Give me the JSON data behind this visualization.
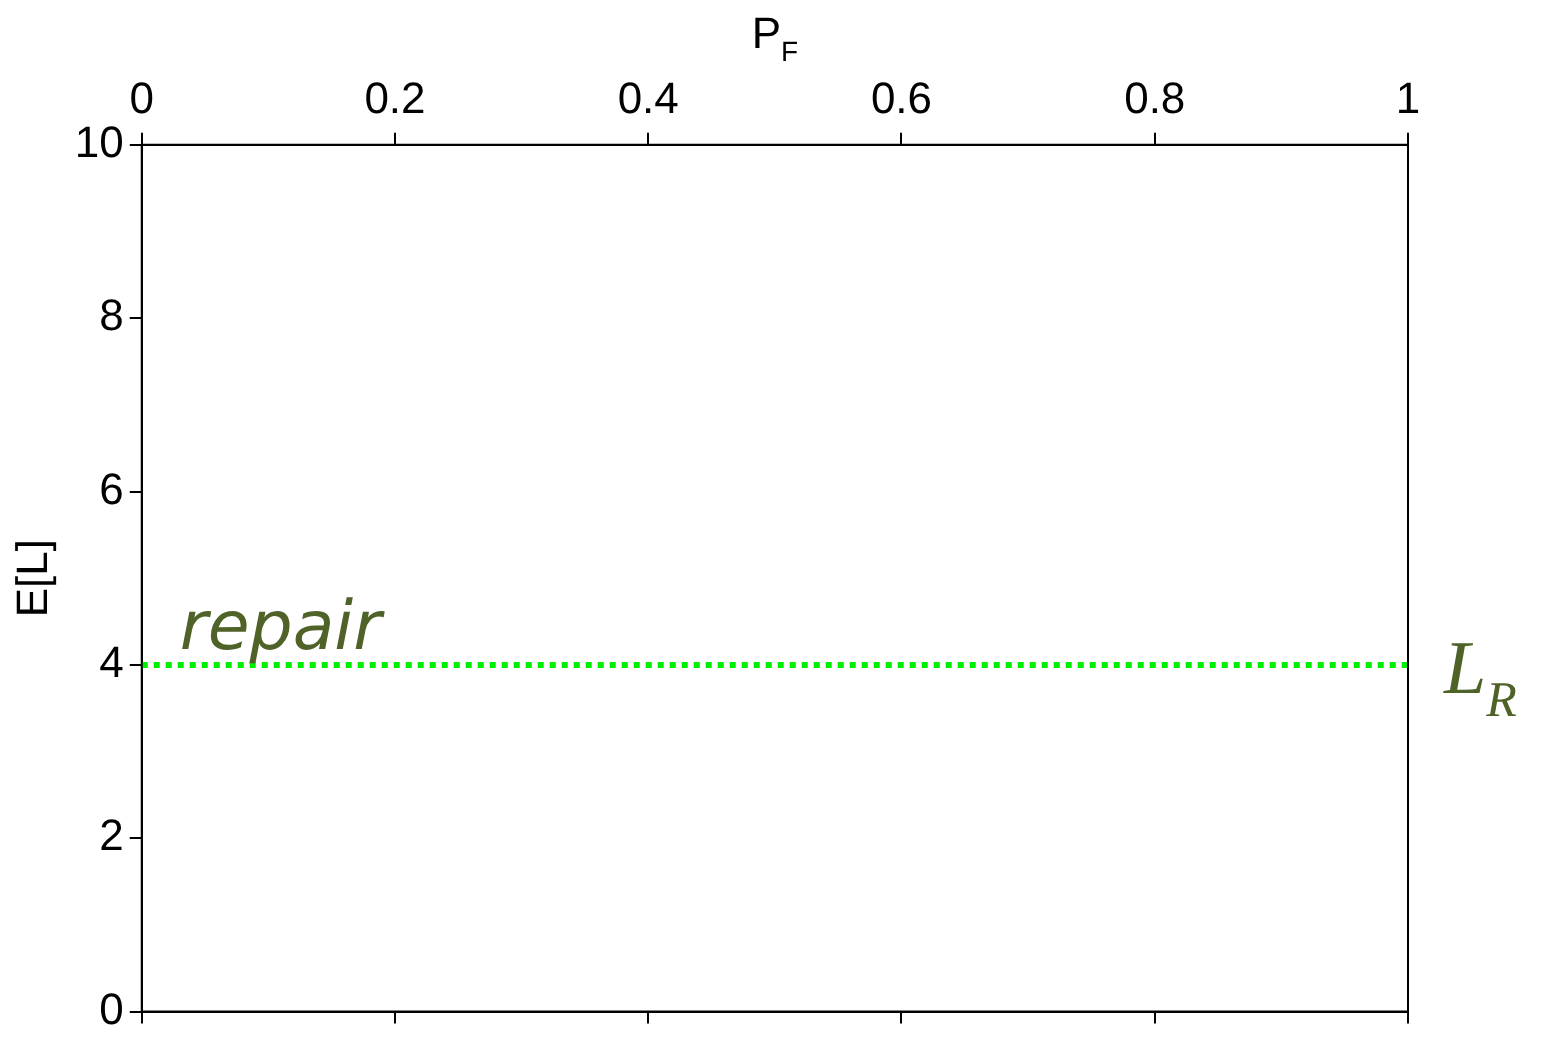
{
  "chart_data": {
    "type": "line",
    "xlabel": "P$_{F}$",
    "ylabel": "E[L]",
    "xlim": [
      0,
      1
    ],
    "xticks": [
      0,
      0.2,
      0.4,
      0.6,
      0.8,
      1
    ],
    "ylim": [
      0,
      10
    ],
    "yticks": [
      0,
      2,
      4,
      6,
      8,
      10
    ],
    "series": [
      {
        "name": "L$_{R}$",
        "color": "#00ee00",
        "x": [
          0,
          1
        ],
        "values": [
          4,
          4
        ],
        "line_style": "dotted"
      }
    ],
    "annotations": [
      {
        "text": "repair",
        "x": 0.03,
        "y": 4
      }
    ],
    "marker": "none",
    "grid": false,
    "legend": false
  }
}
